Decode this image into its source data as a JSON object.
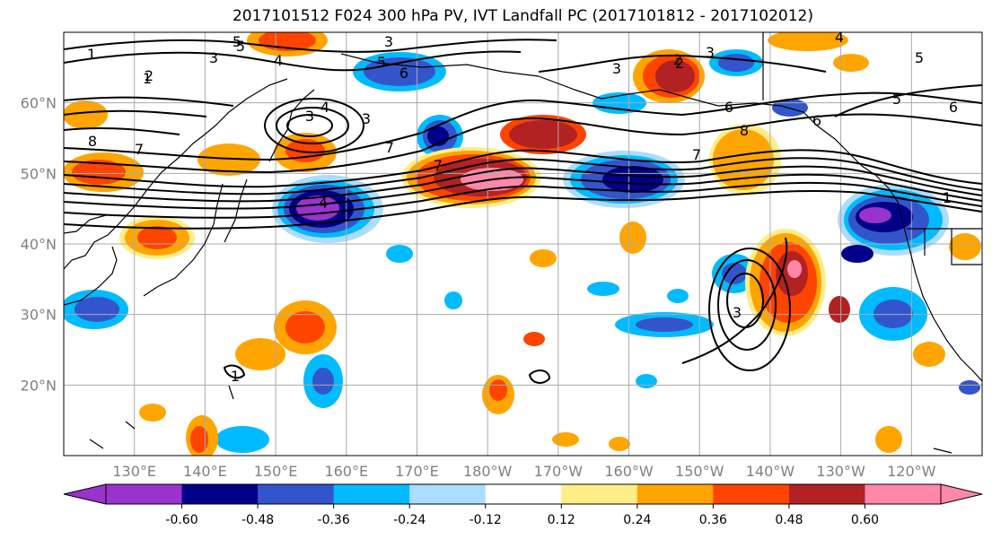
{
  "title": "2017101512 F024 300 hPa PV, IVT Landfall PC (2017101812 - 2017102012)",
  "map": {
    "extent": {
      "lon_min": 120,
      "lon_max": 250,
      "lat_min": 10,
      "lat_max": 70
    },
    "lat_ticks": [
      {
        "value": 20,
        "label": "20°N"
      },
      {
        "value": 30,
        "label": "30°N"
      },
      {
        "value": 40,
        "label": "40°N"
      },
      {
        "value": 50,
        "label": "50°N"
      },
      {
        "value": 60,
        "label": "60°N"
      }
    ],
    "lon_ticks": [
      {
        "value": 130,
        "label": "130°E"
      },
      {
        "value": 140,
        "label": "140°E"
      },
      {
        "value": 150,
        "label": "150°E"
      },
      {
        "value": 160,
        "label": "160°E"
      },
      {
        "value": 170,
        "label": "170°E"
      },
      {
        "value": 180,
        "label": "180°W"
      },
      {
        "value": 190,
        "label": "170°W"
      },
      {
        "value": 200,
        "label": "160°W"
      },
      {
        "value": 210,
        "label": "150°W"
      },
      {
        "value": 220,
        "label": "140°W"
      },
      {
        "value": 230,
        "label": "130°W"
      },
      {
        "value": 240,
        "label": "120°W"
      }
    ],
    "contour_labels": [
      "1",
      "5",
      "3",
      "5",
      "4",
      "3",
      "3",
      "1",
      "2",
      "3",
      "3",
      "2",
      "5",
      "6",
      "6",
      "5",
      "6",
      "4",
      "3",
      "7",
      "8",
      "7",
      "6",
      "4",
      "7",
      "8",
      "7",
      "2",
      "5",
      "1",
      "3",
      "4",
      "1"
    ]
  },
  "colorbar": {
    "colors": [
      "#9933cc",
      "#000088",
      "#3355cc",
      "#00bbff",
      "#aaddff",
      "#ffffff",
      "#ffee88",
      "#ffa500",
      "#ff4400",
      "#b22222",
      "#ff88aa"
    ],
    "tick_labels": [
      "-0.60",
      "-0.48",
      "-0.36",
      "-0.24",
      "-0.12",
      "0.12",
      "0.24",
      "0.36",
      "0.48",
      "0.60"
    ]
  }
}
